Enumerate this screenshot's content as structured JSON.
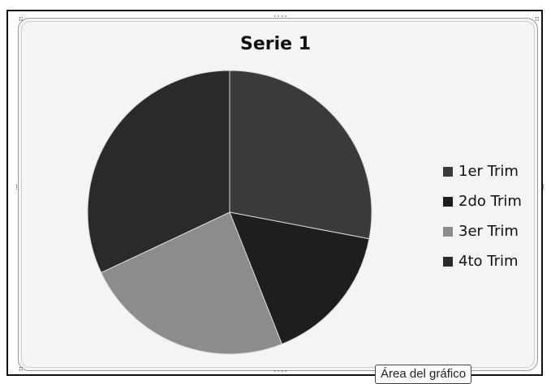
{
  "chart_data": {
    "type": "pie",
    "title": "Serie 1",
    "categories": [
      "1er Trim",
      "2do Trim",
      "3er Trim",
      "4to Trim"
    ],
    "values": [
      28,
      16,
      24,
      32
    ],
    "colors": [
      "#3a3a3a",
      "#1e1e1e",
      "#8c8c8c",
      "#2a2a2a"
    ],
    "start_angle_deg": 0,
    "direction": "clockwise",
    "legend_position": "right"
  },
  "tooltip": {
    "text": "Área del gráfico"
  }
}
